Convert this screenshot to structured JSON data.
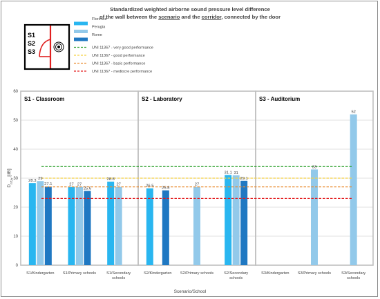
{
  "chart_data": {
    "type": "bar",
    "title_line1": "Standardized weighted airborne sound pressure level difference",
    "title_line2_parts": [
      {
        "t": "of the wall between the ",
        "u": false
      },
      {
        "t": "scenario",
        "u": true
      },
      {
        "t": " and the ",
        "u": false
      },
      {
        "t": "corridor",
        "u": true
      },
      {
        "t": ", connected by the door",
        "u": false
      }
    ],
    "ylabel": "D",
    "ylabel_sub": "nT,w",
    "ylabel_unit": " [dB]",
    "xlabel": "Scenario/School",
    "ylim": [
      0,
      60
    ],
    "yticks": [
      0,
      10,
      20,
      30,
      40,
      50,
      60
    ],
    "grid": true,
    "colors": {
      "Florence": "#29b6f0",
      "Perugia": "#92c9ea",
      "Rome": "#1f78c2",
      "very_good": "#2ca02c",
      "good": "#f5d040",
      "basic": "#e98a2e",
      "mediocre": "#e31a1c"
    },
    "panels": [
      {
        "title": "S1 - Classroom",
        "categories": [
          [
            "S1/Kindergarten"
          ],
          [
            "S1/Primary schools"
          ],
          [
            "S1/Secondary",
            "schools"
          ]
        ]
      },
      {
        "title": "S2 - Laboratory",
        "categories": [
          [
            "S2/Kindergarten"
          ],
          [
            "S2/Primary schools"
          ],
          [
            "S2/Secondary",
            "schools"
          ]
        ]
      },
      {
        "title": "S3 - Auditorium",
        "categories": [
          [
            "S3/Kindergarten"
          ],
          [
            "S3/Primary schools"
          ],
          [
            "S3/Secondary",
            "schools"
          ]
        ]
      }
    ],
    "series": [
      {
        "name": "Florence",
        "values": [
          [
            28.3,
            27,
            28.8
          ],
          [
            26.5,
            null,
            31.1
          ],
          [
            null,
            null,
            null
          ]
        ],
        "labels": [
          [
            "28.3",
            "27",
            "28.8"
          ],
          [
            "26.5",
            "",
            "31.1"
          ],
          [
            "",
            "",
            ""
          ]
        ]
      },
      {
        "name": "Perugia",
        "values": [
          [
            29,
            27,
            27
          ],
          [
            null,
            27,
            31
          ],
          [
            null,
            33,
            52
          ]
        ],
        "labels": [
          [
            "29",
            "27",
            "27"
          ],
          [
            "",
            "27",
            "31"
          ],
          [
            "",
            "33",
            "52"
          ]
        ]
      },
      {
        "name": "Rome",
        "values": [
          [
            27.1,
            25.6,
            null
          ],
          [
            25.8,
            null,
            29.1
          ],
          [
            null,
            null,
            null
          ]
        ],
        "labels": [
          [
            "27.1",
            "25.6",
            ""
          ],
          [
            "25.8",
            "",
            "29.1"
          ],
          [
            "",
            "",
            ""
          ]
        ]
      }
    ],
    "thresholds": [
      {
        "name": "UNI 11367 - very good performance",
        "value": 34,
        "color_key": "very_good"
      },
      {
        "name": "UNI 11367 - good performance",
        "value": 30,
        "color_key": "good"
      },
      {
        "name": "UNI 11367 - basic performance",
        "value": 27,
        "color_key": "basic"
      },
      {
        "name": "UNI 11367 - mediocre performance",
        "value": 23,
        "color_key": "mediocre"
      }
    ],
    "legend_placement": "top"
  },
  "diagram": {
    "labels": [
      "S1",
      "S2",
      "S3"
    ]
  }
}
